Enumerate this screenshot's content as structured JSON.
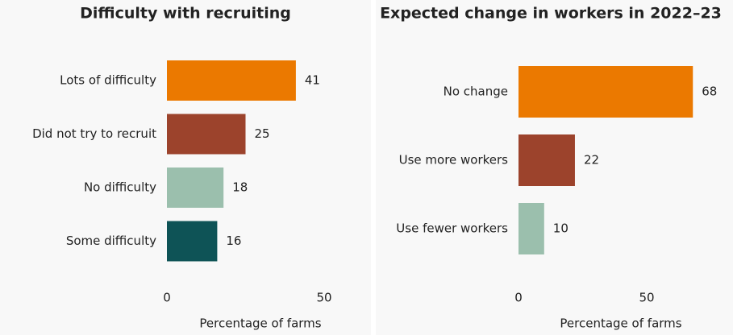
{
  "chart_data": [
    {
      "type": "barh",
      "title": "Difficulty with recruiting",
      "categories": [
        "Lots of difficulty",
        "Did not try to recruit",
        "No difficulty",
        "Some difficulty"
      ],
      "values": [
        41,
        25,
        18,
        16
      ],
      "colors": [
        "#eb7900",
        "#9c432c",
        "#9bbfad",
        "#0e5356"
      ],
      "xlim": [
        0,
        60
      ],
      "xticks": [
        0,
        50
      ],
      "xlabel": "Percentage of farms"
    },
    {
      "type": "barh",
      "title": "Expected change in workers in 2022–23",
      "categories": [
        "No change",
        "Use more workers",
        "Use fewer workers"
      ],
      "values": [
        68,
        22,
        10
      ],
      "colors": [
        "#eb7900",
        "#9c432c",
        "#9bbfad"
      ],
      "xlim": [
        0,
        80
      ],
      "xticks": [
        0,
        50
      ],
      "xlabel": "Percentage of farms"
    }
  ]
}
